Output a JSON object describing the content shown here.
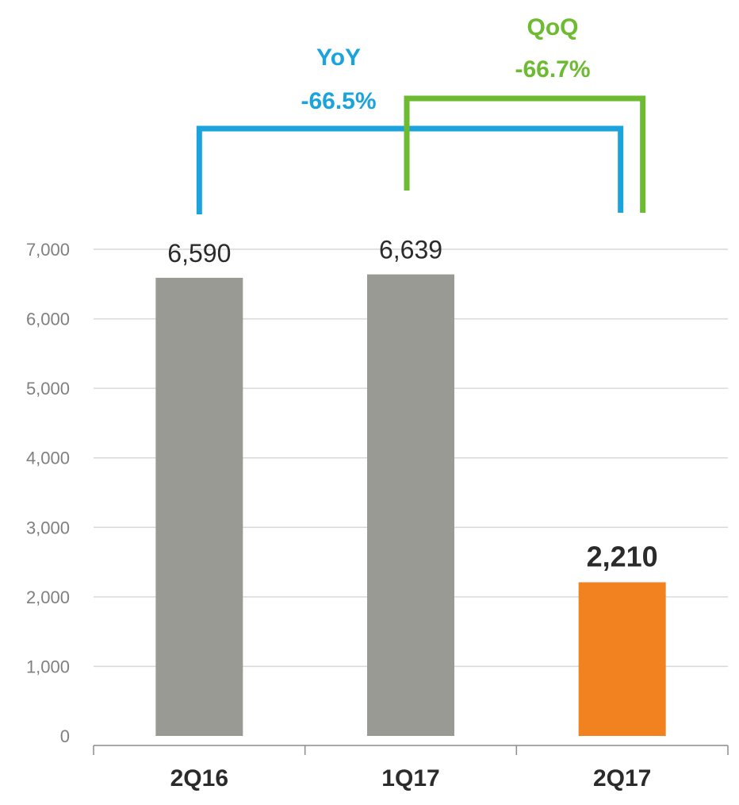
{
  "chart_data": {
    "type": "bar",
    "categories": [
      "2Q16",
      "1Q17",
      "2Q17"
    ],
    "values": [
      6590,
      6639,
      2210
    ],
    "value_labels": [
      "6,590",
      "6,639",
      "2,210"
    ],
    "highlight_index": 2,
    "colors": {
      "bar": "#9a9a95",
      "highlight": "#f28220",
      "grid": "#d9d9d9",
      "axis": "#8c8c8c"
    },
    "ylim": [
      0,
      7000
    ],
    "yticks": [
      0,
      1000,
      2000,
      3000,
      4000,
      5000,
      6000,
      7000
    ],
    "ytick_labels": [
      "0",
      "1,000",
      "2,000",
      "3,000",
      "4,000",
      "5,000",
      "6,000",
      "7,000"
    ],
    "grid": true,
    "annotations": [
      {
        "label": "YoY",
        "value": "-66.5%",
        "from_index": 0,
        "to_index": 2,
        "color": "#1aa3dc"
      },
      {
        "label": "QoQ",
        "value": "-66.7%",
        "from_index": 1,
        "to_index": 2,
        "color": "#6cbb30"
      }
    ]
  }
}
